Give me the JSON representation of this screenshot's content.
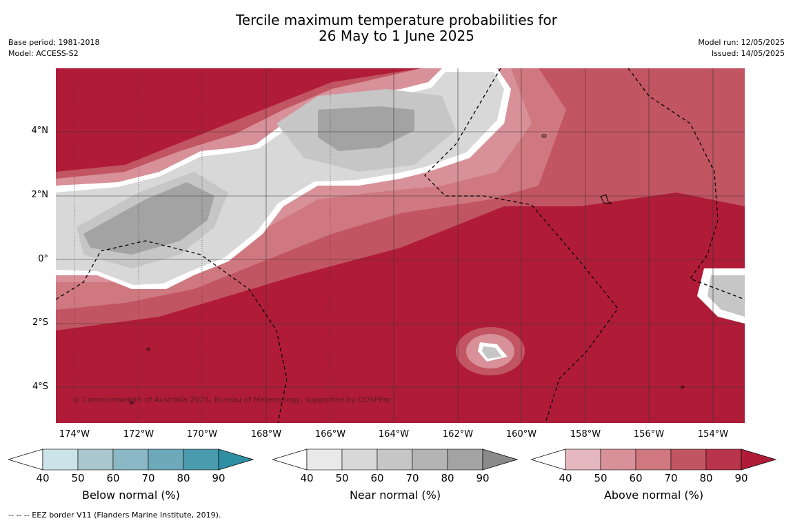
{
  "title_line1": "Tercile maximum temperature probabilities for",
  "title_line2": "26 May to 1 June 2025",
  "base_period": "Base period: 1981-2018",
  "model": "Model: ACCESS-S2",
  "model_run": "Model run: 12/05/2025",
  "issued": "Issued: 14/05/2025",
  "copyright": "© Commonwealth of Australia 2025, Bureau of Meteorology, supported by COSPPac",
  "footer": "--  --  -- EEZ border V11 (Flanders Marine Institute, 2019).",
  "x_ticks": [
    "174°W",
    "172°W",
    "170°W",
    "168°W",
    "166°W",
    "164°W",
    "162°W",
    "160°W",
    "158°W",
    "156°W",
    "154°W"
  ],
  "y_ticks": [
    "4°N",
    "2°N",
    "0°",
    "2°S",
    "4°S"
  ],
  "colorbars": [
    {
      "label": "Below normal (%)",
      "ticks": [
        "40",
        "50",
        "60",
        "70",
        "80",
        "90"
      ],
      "colors": [
        "#cde3ea",
        "#a9c7cd",
        "#8bb8c6",
        "#6ca9b9",
        "#4a9bae",
        "#2f8fa2"
      ]
    },
    {
      "label": "Near normal (%)",
      "ticks": [
        "40",
        "50",
        "60",
        "70",
        "80",
        "90"
      ],
      "colors": [
        "#e9e9e9",
        "#d8d8d8",
        "#c6c6c6",
        "#b4b4b4",
        "#a3a3a3",
        "#8a8a8a"
      ]
    },
    {
      "label": "Above normal (%)",
      "ticks": [
        "40",
        "50",
        "60",
        "70",
        "80",
        "90"
      ],
      "colors": [
        "#e5b8bf",
        "#d89099",
        "#cf7880",
        "#c25562",
        "#b8344a",
        "#b01c38"
      ]
    }
  ]
}
